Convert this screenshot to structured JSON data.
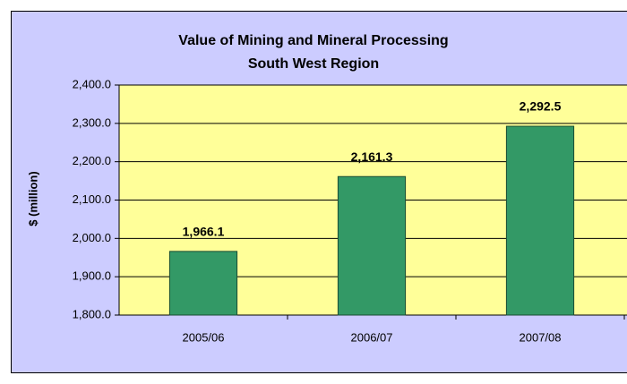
{
  "chart_data": {
    "type": "bar",
    "title": [
      "Value of Mining and Mineral Processing",
      "South West Region"
    ],
    "y_label": "$ (million)",
    "categories": [
      "2005/06",
      "2006/07",
      "2007/08"
    ],
    "values": [
      1966.1,
      2161.3,
      2292.5
    ],
    "value_labels": [
      "1,966.1",
      "2,161.3",
      "2,292.5"
    ],
    "color": "#339966",
    "ylim": [
      1800,
      2400
    ],
    "yticks": [
      {
        "value": 1800,
        "label": "1,800.0"
      },
      {
        "value": 1900,
        "label": "1,900.0"
      },
      {
        "value": 2000,
        "label": "2,000.0"
      },
      {
        "value": 2100,
        "label": "2,100.0"
      },
      {
        "value": 2200,
        "label": "2,200.0"
      },
      {
        "value": 2300,
        "label": "2,300.0"
      },
      {
        "value": 2400,
        "label": "2,400.0"
      }
    ],
    "grid": true
  }
}
